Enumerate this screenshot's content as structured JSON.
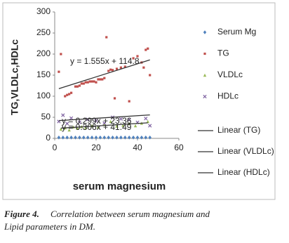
{
  "chart_data": {
    "type": "scatter",
    "x_label": "serum magnesium",
    "y_label": "TG,VLDLc,HDLc",
    "xlim": [
      0,
      60
    ],
    "xticks": [
      0,
      20,
      40,
      60
    ],
    "ylim": [
      0,
      300
    ],
    "yticks": [
      0,
      50,
      100,
      150,
      200,
      250,
      300
    ],
    "series": [
      {
        "name": "Serum Mg",
        "color": "#4f81bd",
        "marker": "diamond",
        "x": [
          2,
          4,
          6,
          8,
          10,
          12,
          14,
          16,
          18,
          20,
          22,
          24,
          26,
          28,
          30,
          32,
          34,
          36,
          38,
          40,
          42,
          44,
          46
        ],
        "values": [
          2,
          2,
          2,
          2,
          2,
          2,
          2,
          2,
          2,
          2,
          2,
          2,
          2,
          2,
          2,
          2,
          2,
          2,
          2,
          2,
          2,
          2,
          2
        ]
      },
      {
        "name": "TG",
        "color": "#c0504d",
        "marker": "square",
        "x": [
          2,
          3,
          5,
          6,
          7,
          8,
          10,
          11,
          12,
          13,
          14,
          15,
          16,
          17,
          18,
          19,
          20,
          21,
          22,
          23,
          24,
          25,
          26,
          27,
          28,
          29,
          30,
          32,
          34,
          36,
          38,
          40,
          42,
          43,
          44,
          45,
          46
        ],
        "values": [
          158,
          200,
          100,
          103,
          105,
          108,
          123,
          123,
          125,
          130,
          130,
          133,
          133,
          135,
          135,
          135,
          133,
          140,
          140,
          140,
          143,
          240,
          160,
          163,
          162,
          95,
          165,
          168,
          170,
          88,
          190,
          195,
          180,
          168,
          210,
          213,
          150
        ]
      },
      {
        "name": "VLDLc",
        "color": "#9bbb59",
        "marker": "triangle",
        "x": [
          3,
          5,
          7,
          9,
          11,
          13,
          15,
          18,
          21,
          24,
          27,
          30,
          33,
          36,
          39,
          42,
          45
        ],
        "values": [
          22,
          25,
          20,
          27,
          24,
          28,
          26,
          30,
          27,
          33,
          40,
          29,
          31,
          35,
          30,
          36,
          40
        ]
      },
      {
        "name": "HDLc",
        "color": "#8064a2",
        "marker": "cross",
        "x": [
          2,
          4,
          6,
          8,
          12,
          16,
          20,
          24,
          28,
          32,
          36,
          40,
          44,
          46
        ],
        "values": [
          40,
          55,
          35,
          48,
          38,
          45,
          42,
          36,
          50,
          46,
          44,
          38,
          47,
          30
        ]
      }
    ],
    "trendlines": [
      {
        "name": "Linear (TG)",
        "series": 1,
        "label": "y = 1.555x + 114.8",
        "slope": 1.555,
        "intercept": 114.8
      },
      {
        "name": "Linear (VLDLc)",
        "series": 2,
        "label": "y = 0.299x + 23.36",
        "slope": 0.299,
        "intercept": 23.36
      },
      {
        "name": "Linear (HDLc)",
        "series": 3,
        "label": "y = 0.306x + 41.49",
        "slope": 0.306,
        "intercept": 41.49
      }
    ]
  },
  "caption": {
    "label": "Figure 4.",
    "text": "Correlation between  serum magnesium and",
    "text2": "Lipid parameters  in DM."
  }
}
